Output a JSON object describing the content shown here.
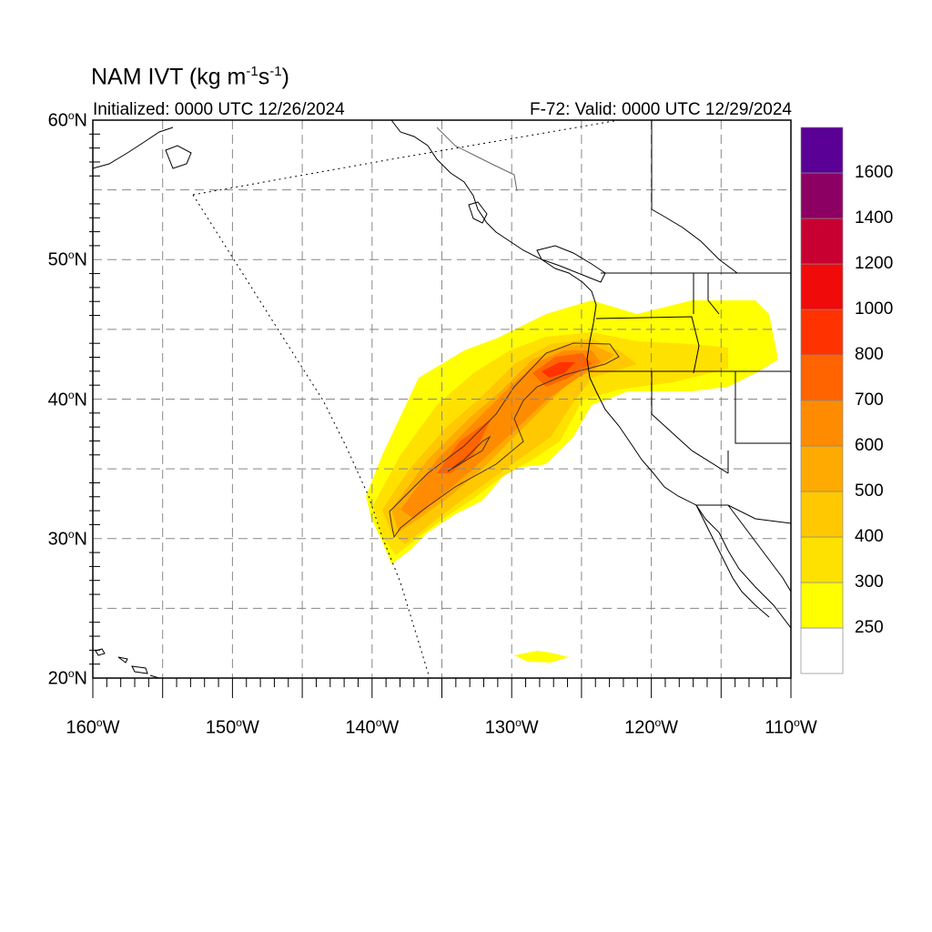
{
  "title": {
    "prefix": "NAM IVT (kg m",
    "exp1": "-1",
    "mid": "s",
    "exp2": "-1",
    "suffix": ")"
  },
  "subtitle_left": "Initialized: 0000 UTC 12/26/2024",
  "subtitle_right": "F-72: Valid: 0000 UTC 12/29/2024",
  "map": {
    "projection": "cylindrical-equidistant",
    "lon_range": [
      -160,
      -110
    ],
    "lat_range": [
      20,
      60
    ],
    "gridlines": "dashed",
    "lat_labels": [
      {
        "value": 60,
        "num": "60",
        "deg": "o",
        "dir": "N"
      },
      {
        "value": 50,
        "num": "50",
        "deg": "o",
        "dir": "N"
      },
      {
        "value": 40,
        "num": "40",
        "deg": "o",
        "dir": "N"
      },
      {
        "value": 30,
        "num": "30",
        "deg": "o",
        "dir": "N"
      },
      {
        "value": 20,
        "num": "20",
        "deg": "o",
        "dir": "N"
      }
    ],
    "lon_labels": [
      {
        "value": -160,
        "num": "160",
        "deg": "o",
        "dir": "W"
      },
      {
        "value": -150,
        "num": "150",
        "deg": "o",
        "dir": "W"
      },
      {
        "value": -140,
        "num": "140",
        "deg": "o",
        "dir": "W"
      },
      {
        "value": -130,
        "num": "130",
        "deg": "o",
        "dir": "W"
      },
      {
        "value": -120,
        "num": "120",
        "deg": "o",
        "dir": "W"
      },
      {
        "value": -110,
        "num": "110",
        "deg": "o",
        "dir": "W"
      }
    ]
  },
  "colorbar": {
    "colors": [
      "#ffffff",
      "#ffff00",
      "#ffe100",
      "#ffc800",
      "#ffaa00",
      "#ff8c00",
      "#ff6400",
      "#ff3200",
      "#f00a0a",
      "#c80032",
      "#8c0064",
      "#5a0096"
    ],
    "labels": [
      "250",
      "300",
      "400",
      "500",
      "600",
      "700",
      "800",
      "1000",
      "1200",
      "1400",
      "1600"
    ]
  }
}
